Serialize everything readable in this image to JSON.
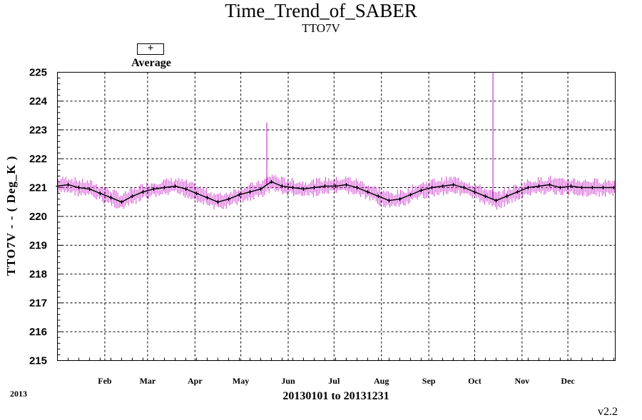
{
  "chart_data": {
    "type": "line",
    "title": "Time_Trend_of_SABER",
    "subtitle": "TTO7V",
    "ylabel": "TTO7V - - ( Deg_K )",
    "xlabel": "20130101 to 20131231",
    "year_label": "2013",
    "version": "v2.2",
    "ylim": [
      215,
      225
    ],
    "yticks": [
      215,
      216,
      217,
      218,
      219,
      220,
      221,
      222,
      223,
      224,
      225
    ],
    "xlim": [
      "2013-01-01",
      "2013-12-31"
    ],
    "month_ticks": [
      {
        "label": "Feb",
        "date": "2013-02-01"
      },
      {
        "label": "Mar",
        "date": "2013-03-01"
      },
      {
        "label": "Apr",
        "date": "2013-04-01"
      },
      {
        "label": "May",
        "date": "2013-05-01"
      },
      {
        "label": "Jun",
        "date": "2013-06-01"
      },
      {
        "label": "Jul",
        "date": "2013-07-01"
      },
      {
        "label": "Aug",
        "date": "2013-08-01"
      },
      {
        "label": "Sep",
        "date": "2013-09-01"
      },
      {
        "label": "Oct",
        "date": "2013-10-01"
      },
      {
        "label": "Nov",
        "date": "2013-11-01"
      },
      {
        "label": "Dec",
        "date": "2013-12-01"
      }
    ],
    "grid": true,
    "legend": {
      "position": "top-left",
      "symbol": "+",
      "label": "Average"
    },
    "colors": {
      "average": "#000000",
      "spread": "#cc33cc",
      "grid": "#000000"
    },
    "series": [
      {
        "name": "Average",
        "x": [
          "2013-01-01",
          "2013-01-08",
          "2013-01-15",
          "2013-01-22",
          "2013-01-29",
          "2013-02-05",
          "2013-02-12",
          "2013-02-19",
          "2013-02-26",
          "2013-03-05",
          "2013-03-12",
          "2013-03-19",
          "2013-03-26",
          "2013-04-02",
          "2013-04-09",
          "2013-04-16",
          "2013-04-23",
          "2013-04-30",
          "2013-05-07",
          "2013-05-14",
          "2013-05-21",
          "2013-05-28",
          "2013-06-04",
          "2013-06-11",
          "2013-06-18",
          "2013-06-25",
          "2013-07-02",
          "2013-07-09",
          "2013-07-16",
          "2013-07-23",
          "2013-07-30",
          "2013-08-06",
          "2013-08-13",
          "2013-08-20",
          "2013-08-27",
          "2013-09-03",
          "2013-09-10",
          "2013-09-17",
          "2013-09-24",
          "2013-10-01",
          "2013-10-08",
          "2013-10-15",
          "2013-10-22",
          "2013-10-29",
          "2013-11-05",
          "2013-11-12",
          "2013-11-19",
          "2013-11-26",
          "2013-12-03",
          "2013-12-10",
          "2013-12-17",
          "2013-12-24",
          "2013-12-31"
        ],
        "y": [
          221.05,
          221.1,
          221.0,
          220.95,
          220.8,
          220.65,
          220.5,
          220.7,
          220.85,
          220.95,
          221.0,
          221.05,
          220.95,
          220.8,
          220.65,
          220.5,
          220.6,
          220.75,
          220.85,
          220.95,
          221.2,
          221.05,
          221.0,
          220.95,
          221.0,
          221.05,
          221.05,
          221.1,
          221.0,
          220.85,
          220.7,
          220.55,
          220.6,
          220.75,
          220.9,
          221.0,
          221.05,
          221.1,
          221.0,
          220.85,
          220.7,
          220.55,
          220.7,
          220.85,
          221.0,
          221.05,
          221.1,
          221.0,
          221.05,
          221.0,
          221.0,
          221.0,
          221.0
        ]
      }
    ],
    "spread": {
      "half_range": 0.22,
      "spikes": [
        {
          "date": "2013-05-18",
          "max": 223.25
        },
        {
          "date": "2013-10-13",
          "max": 225.0
        }
      ]
    }
  }
}
